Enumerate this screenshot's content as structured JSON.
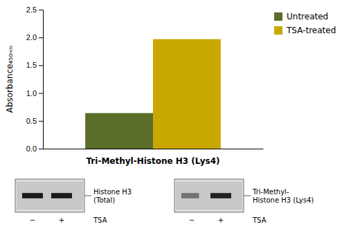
{
  "chart_data": {
    "type": "bar",
    "x_label": "Tri-Methyl-Histone H3 (Lys4)",
    "y_label": "Absorbance₄₅₀ₙₘ",
    "categories": [
      null
    ],
    "series": [
      {
        "name": "Untreated",
        "color": "#5a6e2a",
        "values": [
          0.64
        ]
      },
      {
        "name": "TSA-treated",
        "color": "#c8a800",
        "values": [
          1.97
        ]
      }
    ],
    "ylim": [
      0,
      2.5
    ],
    "yticks": [
      {
        "value": 0,
        "label": "0.0"
      },
      0.5,
      {
        "value": 1.0,
        "label": "1.0"
      },
      1.5,
      {
        "value": 2.0,
        "label": "2.0"
      },
      2.5
    ],
    "grid": false,
    "legend": "right",
    "tick_labels": "y",
    "annotations": [
      "Histone H3\n(Total)",
      "−",
      "+",
      "TSA",
      "Tri-Methyl-\nHistone H3 (Lys4)",
      "−",
      "+",
      "TSA"
    ]
  }
}
